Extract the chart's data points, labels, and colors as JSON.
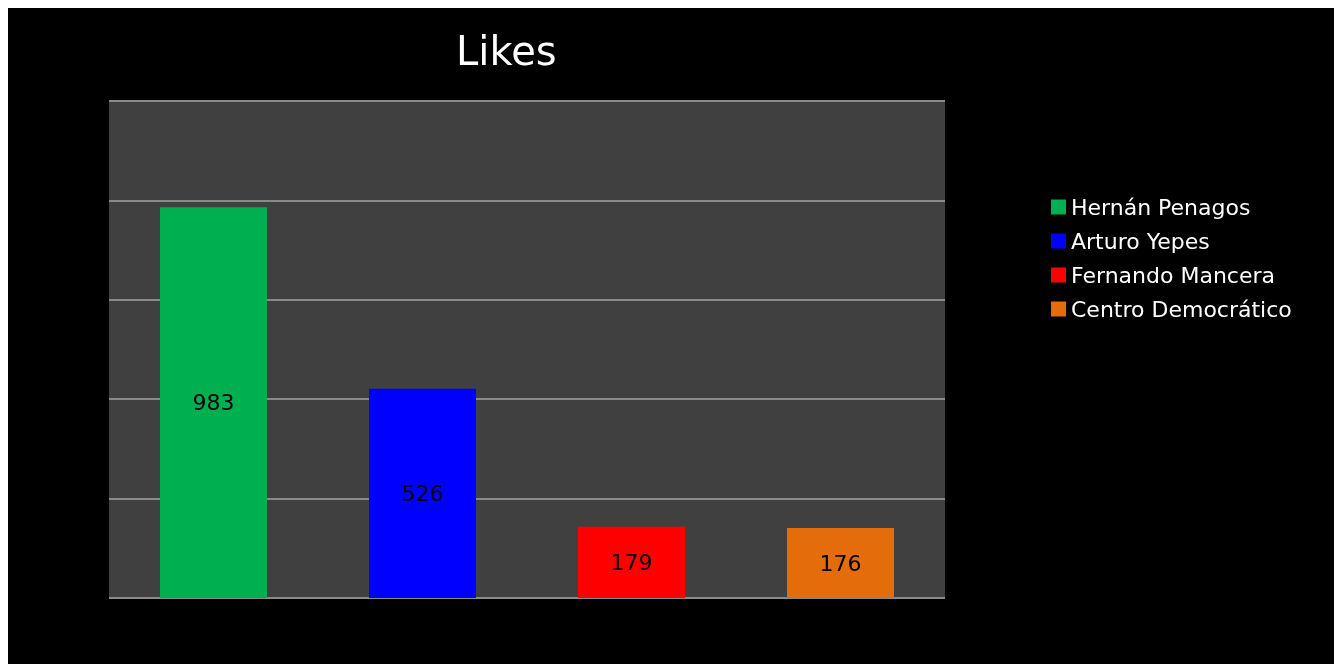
{
  "chart_data": {
    "type": "bar",
    "title": "Likes",
    "categories": [
      null,
      null,
      null,
      null
    ],
    "stacked": true,
    "series": [
      {
        "name": "Hernán Penagos",
        "color": "#00b050",
        "values": [
          983,
          null,
          null,
          null
        ]
      },
      {
        "name": "Arturo Yepes",
        "color": "#0000ff",
        "values": [
          null,
          526,
          null,
          null
        ]
      },
      {
        "name": "Fernando Mancera",
        "color": "#ff0000",
        "values": [
          null,
          null,
          179,
          null
        ]
      },
      {
        "name": "Centro Democrático",
        "color": "#e46c0a",
        "values": [
          null,
          null,
          null,
          176
        ]
      }
    ],
    "ylim": [
      0,
      1250
    ],
    "yticks": [
      {
        "value": 0,
        "label": null
      },
      {
        "value": 250,
        "label": null
      },
      {
        "value": 500,
        "label": null
      },
      {
        "value": 750,
        "label": null
      },
      {
        "value": 1000,
        "label": null
      },
      {
        "value": 1250,
        "label": null
      }
    ],
    "grid": "y",
    "legend": "right",
    "data_labels": true
  }
}
